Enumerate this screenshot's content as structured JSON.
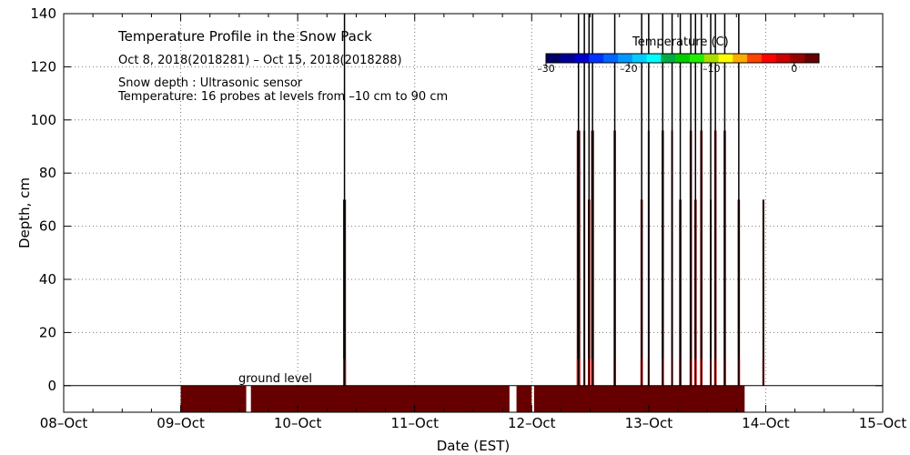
{
  "chart_data": {
    "type": "heatmap",
    "title": "Temperature Profile in the Snow Pack",
    "subtitle": "Oct  8, 2018(2018281) – Oct 15, 2018(2018288)",
    "notes": [
      "Snow depth : Ultrasonic sensor",
      "Temperature: 16 probes at levels from –10 cm to 90 cm"
    ],
    "xlabel": "Date (EST)",
    "ylabel": "Depth, cm",
    "xlim": [
      "08-Oct",
      "15-Oct"
    ],
    "ylim": [
      -10,
      140
    ],
    "x_ticks": [
      "08–Oct",
      "09–Oct",
      "10–Oct",
      "11–Oct",
      "12–Oct",
      "13–Oct",
      "14–Oct",
      "15–Oct"
    ],
    "y_ticks": [
      "0",
      "20",
      "40",
      "60",
      "80",
      "100",
      "120",
      "140"
    ],
    "grid": true,
    "ground_label": "ground level",
    "colorbar": {
      "title": "Temperature (C)",
      "ticks": [
        "–30",
        "–20",
        "–10",
        "0"
      ],
      "range": [
        -30,
        3
      ],
      "colors": [
        "#000066",
        "#000099",
        "#0000cc",
        "#0033ff",
        "#0066ff",
        "#0099ff",
        "#00ccff",
        "#00ffff",
        "#00aa44",
        "#00cc00",
        "#22ee00",
        "#aadd00",
        "#ffff00",
        "#ffaa00",
        "#ff4400",
        "#ff0000",
        "#cc0000",
        "#990000",
        "#660000"
      ]
    },
    "colors": {
      "warm_near_zero": "#660000",
      "warm_surface": "#ff0000",
      "line": "#000000"
    },
    "ground_bar": {
      "start_day": 1.0,
      "end_day": 5.82,
      "gaps": [
        [
          1.56,
          1.6
        ],
        [
          3.81,
          3.87
        ],
        [
          4.0,
          4.02
        ]
      ]
    },
    "snow_spikes": [
      {
        "day": 2.4,
        "depth": 140,
        "width": 0.025,
        "fill_depth": 70
      },
      {
        "day": 4.4,
        "depth": 140,
        "width": 0.03,
        "fill_depth": 96
      },
      {
        "day": 4.45,
        "depth": 140,
        "width": 0.015,
        "fill_depth": 96
      },
      {
        "day": 4.49,
        "depth": 140,
        "width": 0.02,
        "fill_depth": 70
      },
      {
        "day": 4.52,
        "depth": 140,
        "width": 0.025,
        "fill_depth": 96
      },
      {
        "day": 4.71,
        "depth": 140,
        "width": 0.02,
        "fill_depth": 96
      },
      {
        "day": 4.94,
        "depth": 140,
        "width": 0.02,
        "fill_depth": 70
      },
      {
        "day": 5.0,
        "depth": 140,
        "width": 0.015,
        "fill_depth": 96
      },
      {
        "day": 5.12,
        "depth": 140,
        "width": 0.02,
        "fill_depth": 96
      },
      {
        "day": 5.2,
        "depth": 140,
        "width": 0.015,
        "fill_depth": 96
      },
      {
        "day": 5.27,
        "depth": 140,
        "width": 0.02,
        "fill_depth": 70
      },
      {
        "day": 5.36,
        "depth": 140,
        "width": 0.02,
        "fill_depth": 96
      },
      {
        "day": 5.4,
        "depth": 140,
        "width": 0.02,
        "fill_depth": 70
      },
      {
        "day": 5.45,
        "depth": 140,
        "width": 0.02,
        "fill_depth": 96
      },
      {
        "day": 5.53,
        "depth": 140,
        "width": 0.015,
        "fill_depth": 70
      },
      {
        "day": 5.57,
        "depth": 140,
        "width": 0.02,
        "fill_depth": 96
      },
      {
        "day": 5.65,
        "depth": 140,
        "width": 0.02,
        "fill_depth": 96
      },
      {
        "day": 5.77,
        "depth": 140,
        "width": 0.02,
        "fill_depth": 70
      },
      {
        "day": 5.98,
        "depth": 70,
        "width": 0.01,
        "fill_depth": 70
      }
    ]
  }
}
